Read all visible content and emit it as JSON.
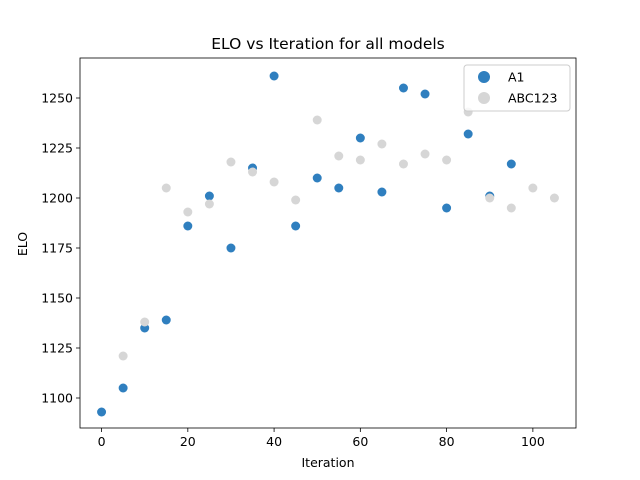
{
  "chart_data": {
    "type": "scatter",
    "title": "ELO vs Iteration for all models",
    "xlabel": "Iteration",
    "ylabel": "ELO",
    "xlim": [
      -5,
      110
    ],
    "ylim": [
      1085,
      1270
    ],
    "xticks": [
      0,
      20,
      40,
      60,
      80,
      100
    ],
    "yticks": [
      1100,
      1125,
      1150,
      1175,
      1200,
      1225,
      1250
    ],
    "grid": false,
    "legend_position": "top-right",
    "series": [
      {
        "name": "A1",
        "color": "#2f7fbf",
        "x": [
          0,
          5,
          10,
          15,
          20,
          25,
          30,
          35,
          40,
          45,
          50,
          55,
          60,
          65,
          70,
          75,
          80,
          85,
          90,
          95
        ],
        "y": [
          1093,
          1105,
          1135,
          1139,
          1186,
          1201,
          1175,
          1215,
          1261,
          1186,
          1210,
          1205,
          1230,
          1203,
          1255,
          1252,
          1195,
          1232,
          1201,
          1217
        ]
      },
      {
        "name": "ABC123",
        "color": "#d6d6d6",
        "x": [
          5,
          10,
          15,
          20,
          25,
          30,
          35,
          40,
          45,
          50,
          55,
          60,
          65,
          70,
          75,
          80,
          85,
          90,
          95,
          100,
          105
        ],
        "y": [
          1121,
          1138,
          1205,
          1193,
          1197,
          1218,
          1213,
          1208,
          1199,
          1239,
          1221,
          1219,
          1227,
          1217,
          1222,
          1219,
          1243,
          1200,
          1195,
          1205,
          1200
        ]
      }
    ]
  }
}
